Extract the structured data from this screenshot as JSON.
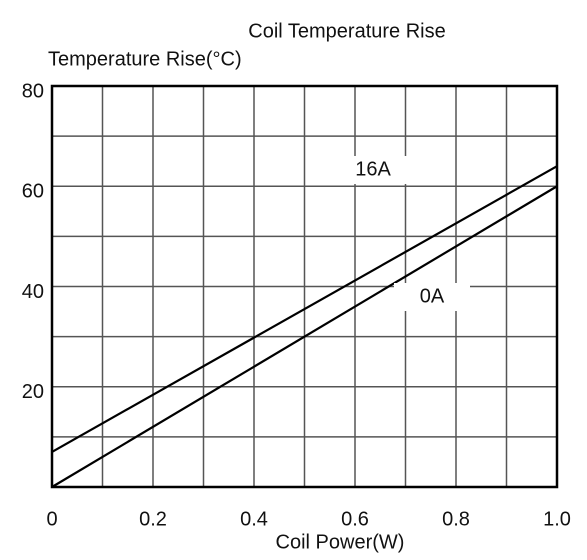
{
  "chart_data": {
    "type": "line",
    "title": "Coil Temperature Rise",
    "y_label": "Temperature Rise(°C)",
    "x_label": "Coil Power(W)",
    "x": [
      0,
      1
    ],
    "series": [
      {
        "name": "16A",
        "color": "#000000",
        "values": [
          7,
          64
        ]
      },
      {
        "name": "0A",
        "color": "#000000",
        "values": [
          0,
          60
        ]
      }
    ],
    "xlim": [
      0,
      1
    ],
    "ylim": [
      0,
      80
    ],
    "xticks": [
      0,
      0.2,
      0.4,
      0.6,
      0.8,
      {
        "value": 1,
        "label": "1.0"
      }
    ],
    "yticks": [
      20,
      40,
      60,
      80
    ],
    "x_minor_ticks": [
      0.1,
      0.3,
      0.5,
      0.7,
      0.9
    ],
    "y_minor_ticks": [
      10,
      30,
      50,
      70
    ],
    "grid": true
  }
}
